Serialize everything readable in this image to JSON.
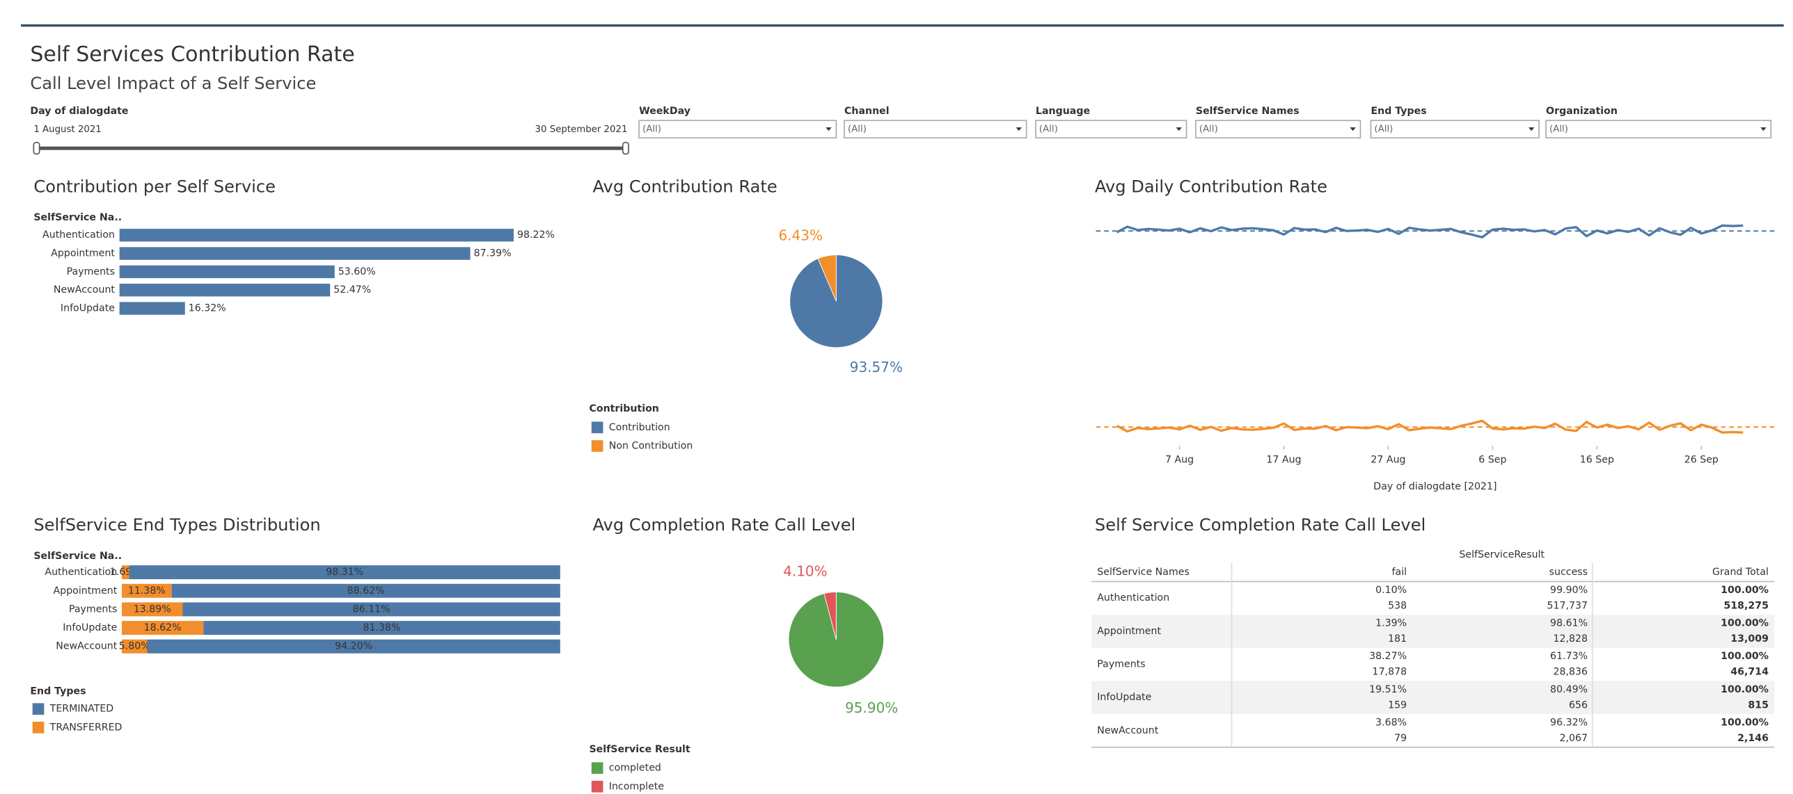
{
  "header": {
    "title": "Self Services Contribution Rate",
    "subtitle": "Call Level Impact of a Self Service"
  },
  "filters": {
    "date": {
      "label": "Day of dialogdate",
      "start": "1 August 2021",
      "end": "30 September 2021"
    },
    "dropdowns": [
      {
        "label": "WeekDay",
        "value": "(All)"
      },
      {
        "label": "Channel",
        "value": "(All)"
      },
      {
        "label": "Language",
        "value": "(All)"
      },
      {
        "label": "SelfService Names",
        "value": "(All)"
      },
      {
        "label": "End Types",
        "value": "(All)"
      },
      {
        "label": "Organization",
        "value": "(All)"
      }
    ]
  },
  "chart_data": [
    {
      "type": "bar",
      "title": "Contribution per Self Service",
      "axis_label": "SelfService Na..",
      "categories": [
        "Authentication",
        "Appointment",
        "Payments",
        "NewAccount",
        "InfoUpdate"
      ],
      "values": [
        98.22,
        87.39,
        53.6,
        52.47,
        16.32
      ],
      "value_labels": [
        "98.22%",
        "87.39%",
        "53.60%",
        "52.47%",
        "16.32%"
      ],
      "color": "#4e79a7",
      "xlim": [
        0,
        115
      ]
    },
    {
      "type": "pie",
      "title": "Avg Contribution Rate",
      "legend_title": "Contribution",
      "categories": [
        "Contribution",
        "Non Contribution"
      ],
      "values": [
        93.57,
        6.43
      ],
      "value_labels": [
        "93.57%",
        "6.43%"
      ],
      "colors": [
        "#4e79a7",
        "#f28e2b"
      ]
    },
    {
      "type": "line",
      "title": "Avg Daily Contribution Rate",
      "x_label": "Day of dialogdate [2021]",
      "x": [
        "2021-08-01",
        "2021-08-02",
        "2021-08-03",
        "2021-08-04",
        "2021-08-05",
        "2021-08-06",
        "2021-08-07",
        "2021-08-08",
        "2021-08-09",
        "2021-08-10",
        "2021-08-11",
        "2021-08-12",
        "2021-08-13",
        "2021-08-14",
        "2021-08-15",
        "2021-08-16",
        "2021-08-17",
        "2021-08-18",
        "2021-08-19",
        "2021-08-20",
        "2021-08-21",
        "2021-08-22",
        "2021-08-23",
        "2021-08-24",
        "2021-08-25",
        "2021-08-26",
        "2021-08-27",
        "2021-08-28",
        "2021-08-29",
        "2021-08-30",
        "2021-08-31",
        "2021-09-01",
        "2021-09-02",
        "2021-09-03",
        "2021-09-04",
        "2021-09-05",
        "2021-09-06",
        "2021-09-07",
        "2021-09-08",
        "2021-09-09",
        "2021-09-10",
        "2021-09-11",
        "2021-09-12",
        "2021-09-13",
        "2021-09-14",
        "2021-09-15",
        "2021-09-16",
        "2021-09-17",
        "2021-09-18",
        "2021-09-19",
        "2021-09-20",
        "2021-09-21",
        "2021-09-22",
        "2021-09-23",
        "2021-09-24",
        "2021-09-25",
        "2021-09-26",
        "2021-09-27",
        "2021-09-28",
        "2021-09-29",
        "2021-09-30"
      ],
      "series": [
        {
          "name": "Contribution",
          "color": "#4e79a7",
          "average": 93.57,
          "values": [
            93.0,
            95.5,
            94.0,
            94.5,
            94.2,
            93.8,
            94.6,
            93.0,
            94.8,
            93.5,
            95.2,
            94.0,
            94.6,
            94.8,
            94.4,
            93.9,
            92.0,
            94.9,
            94.2,
            94.3,
            93.1,
            95.0,
            93.6,
            93.8,
            94.1,
            93.2,
            94.5,
            92.3,
            95.0,
            94.3,
            93.8,
            94.1,
            94.5,
            93.0,
            92.0,
            90.8,
            94.2,
            94.6,
            94.1,
            94.3,
            93.4,
            94.0,
            92.1,
            94.7,
            95.3,
            91.3,
            93.8,
            92.5,
            94.0,
            93.2,
            94.6,
            91.6,
            94.8,
            93.0,
            91.9,
            95.0,
            92.5,
            93.8,
            96.0,
            95.8,
            96.0
          ]
        },
        {
          "name": "Non Contribution",
          "color": "#f28e2b",
          "average": 6.43,
          "values": [
            7.0,
            4.5,
            6.0,
            5.5,
            5.8,
            6.2,
            5.4,
            7.0,
            5.2,
            6.5,
            4.8,
            6.0,
            5.4,
            5.2,
            5.6,
            6.1,
            8.0,
            5.1,
            5.8,
            5.7,
            6.9,
            5.0,
            6.4,
            6.2,
            5.9,
            6.8,
            5.5,
            7.7,
            5.0,
            5.7,
            6.2,
            5.9,
            5.5,
            7.0,
            8.0,
            9.2,
            5.8,
            5.4,
            5.9,
            5.7,
            6.6,
            6.0,
            7.9,
            5.3,
            4.7,
            8.7,
            6.2,
            7.5,
            6.0,
            6.8,
            5.4,
            8.4,
            5.2,
            7.0,
            8.1,
            5.0,
            7.5,
            6.2,
            4.0,
            4.2,
            4.0
          ]
        }
      ],
      "xlim": [
        "2021-07-30",
        "2021-10-03"
      ],
      "ylim": [
        -2,
        101
      ],
      "xticks": [
        {
          "value": "2021-08-07",
          "label": "7 Aug"
        },
        {
          "value": "2021-08-17",
          "label": "17 Aug"
        },
        {
          "value": "2021-08-27",
          "label": "27 Aug"
        },
        {
          "value": "2021-09-06",
          "label": "6 Sep"
        },
        {
          "value": "2021-09-16",
          "label": "16 Sep"
        },
        {
          "value": "2021-09-26",
          "label": "26 Sep"
        }
      ]
    },
    {
      "type": "bar",
      "title": "SelfService End Types Distribution",
      "axis_label": "SelfService Na..",
      "legend_title": "End Types",
      "stacked": true,
      "categories": [
        "Authentication",
        "Appointment",
        "Payments",
        "InfoUpdate",
        "NewAccount"
      ],
      "series": [
        {
          "name": "TRANSFERRED",
          "color": "#f28e2b",
          "values": [
            1.69,
            11.38,
            13.89,
            18.62,
            5.8
          ],
          "value_labels": [
            "1.69%",
            "11.38%",
            "13.89%",
            "18.62%",
            "5.80%"
          ]
        },
        {
          "name": "TERMINATED",
          "color": "#4e79a7",
          "values": [
            98.31,
            88.62,
            86.11,
            81.38,
            94.2
          ],
          "value_labels": [
            "98.31%",
            "88.62%",
            "86.11%",
            "81.38%",
            "94.20%"
          ]
        }
      ],
      "xlim": [
        0,
        100
      ]
    },
    {
      "type": "pie",
      "title": "Avg Completion Rate Call Level",
      "legend_title": "SelfService Result",
      "categories": [
        "completed",
        "Incomplete"
      ],
      "values": [
        95.9,
        4.1
      ],
      "value_labels": [
        "95.90%",
        "4.10%"
      ],
      "colors": [
        "#59a14f",
        "#e15759"
      ]
    }
  ],
  "table": {
    "title": "Self Service Completion Rate Call Level",
    "group_header": "SelfServiceResult",
    "columns": [
      "SelfService Names",
      "fail",
      "success",
      "Grand Total"
    ],
    "rows": [
      {
        "name": "Authentication",
        "percent": [
          "0.10%",
          "99.90%",
          "100.00%"
        ],
        "count": [
          "538",
          "517,737",
          "518,275"
        ]
      },
      {
        "name": "Appointment",
        "percent": [
          "1.39%",
          "98.61%",
          "100.00%"
        ],
        "count": [
          "181",
          "12,828",
          "13,009"
        ]
      },
      {
        "name": "Payments",
        "percent": [
          "38.27%",
          "61.73%",
          "100.00%"
        ],
        "count": [
          "17,878",
          "28,836",
          "46,714"
        ]
      },
      {
        "name": "InfoUpdate",
        "percent": [
          "19.51%",
          "80.49%",
          "100.00%"
        ],
        "count": [
          "159",
          "656",
          "815"
        ]
      },
      {
        "name": "NewAccount",
        "percent": [
          "3.68%",
          "96.32%",
          "100.00%"
        ],
        "count": [
          "79",
          "2,067",
          "2,146"
        ]
      }
    ]
  }
}
